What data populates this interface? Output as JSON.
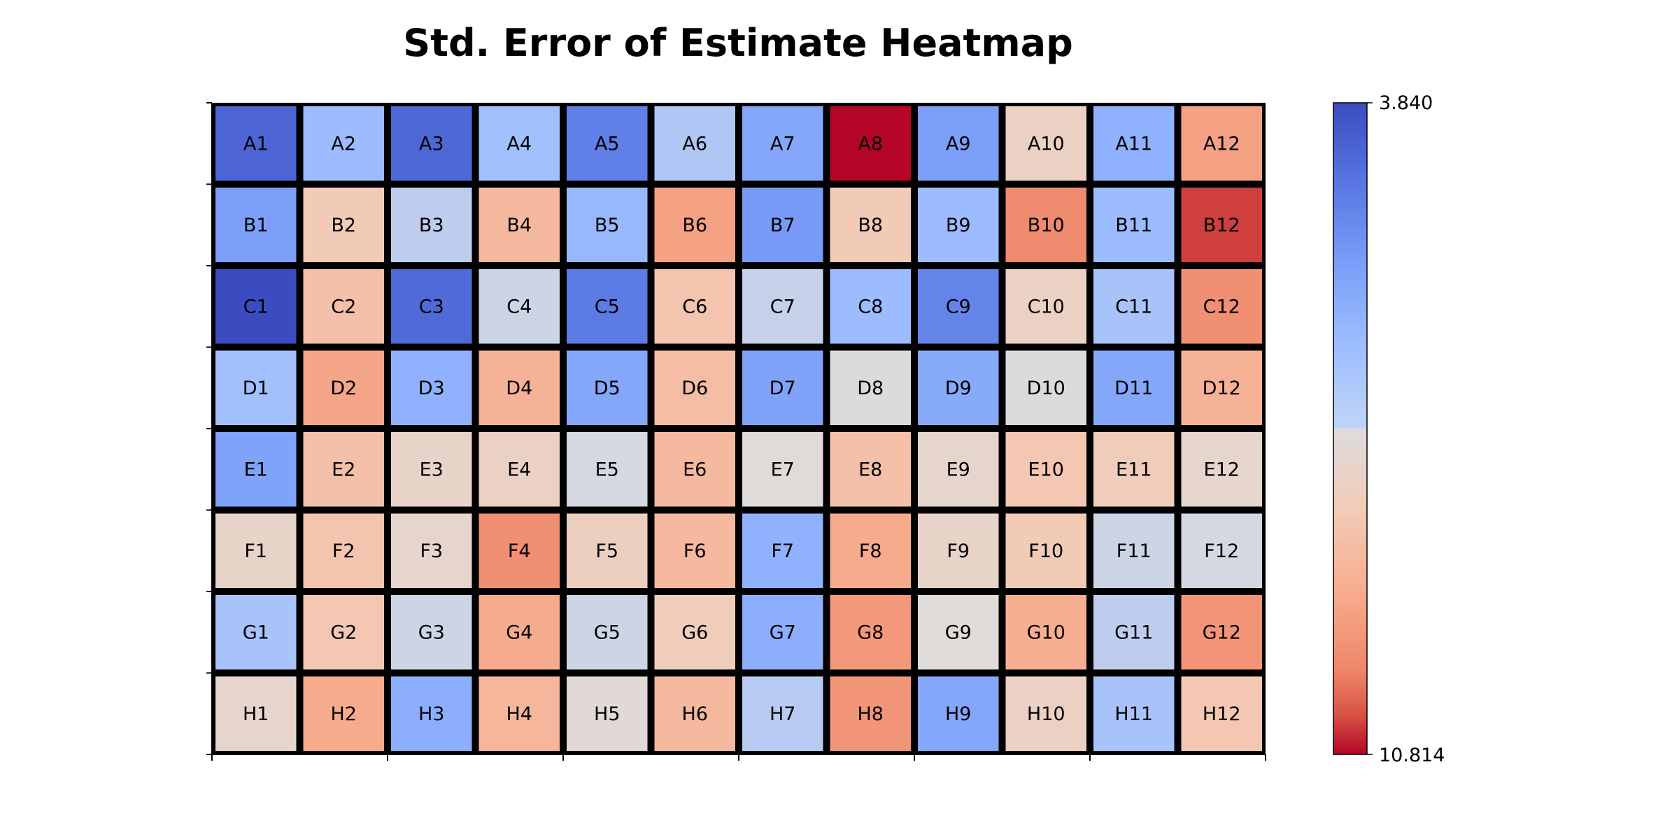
{
  "chart_data": {
    "type": "heatmap",
    "title": "Std. Error of Estimate Heatmap",
    "rows": [
      "A",
      "B",
      "C",
      "D",
      "E",
      "F",
      "G",
      "H"
    ],
    "columns": [
      "1",
      "2",
      "3",
      "4",
      "5",
      "6",
      "7",
      "8",
      "9",
      "10",
      "11",
      "12"
    ],
    "cell_labels": [
      [
        "A1",
        "A2",
        "A3",
        "A4",
        "A5",
        "A6",
        "A7",
        "A8",
        "A9",
        "A10",
        "A11",
        "A12"
      ],
      [
        "B1",
        "B2",
        "B3",
        "B4",
        "B5",
        "B6",
        "B7",
        "B8",
        "B9",
        "B10",
        "B11",
        "B12"
      ],
      [
        "C1",
        "C2",
        "C3",
        "C4",
        "C5",
        "C6",
        "C7",
        "C8",
        "C9",
        "C10",
        "C11",
        "C12"
      ],
      [
        "D1",
        "D2",
        "D3",
        "D4",
        "D5",
        "D6",
        "D7",
        "D8",
        "D9",
        "D10",
        "D11",
        "D12"
      ],
      [
        "E1",
        "E2",
        "E3",
        "E4",
        "E5",
        "E6",
        "E7",
        "E8",
        "E9",
        "E10",
        "E11",
        "E12"
      ],
      [
        "F1",
        "F2",
        "F3",
        "F4",
        "F5",
        "F6",
        "F7",
        "F8",
        "F9",
        "F10",
        "F11",
        "F12"
      ],
      [
        "G1",
        "G2",
        "G3",
        "G4",
        "G5",
        "G6",
        "G7",
        "G8",
        "G9",
        "G10",
        "G11",
        "G12"
      ],
      [
        "H1",
        "H2",
        "H3",
        "H4",
        "H5",
        "H6",
        "H7",
        "H8",
        "H9",
        "H10",
        "H11",
        "H12"
      ]
    ],
    "values": [
      [
        4.35,
        6.4,
        4.4,
        6.5,
        4.9,
        6.7,
        5.8,
        10.81,
        5.6,
        7.9,
        6.1,
        9.3
      ],
      [
        5.6,
        8.2,
        6.9,
        8.7,
        6.3,
        9.3,
        5.5,
        8.2,
        6.4,
        9.8,
        6.4,
        10.5
      ],
      [
        3.84,
        8.5,
        4.45,
        7.1,
        4.8,
        8.4,
        7.0,
        6.4,
        5.0,
        7.9,
        6.6,
        9.7
      ],
      [
        6.5,
        9.2,
        6.1,
        8.9,
        5.8,
        8.6,
        5.7,
        7.3,
        5.9,
        7.3,
        5.8,
        8.9
      ],
      [
        5.7,
        8.5,
        7.8,
        7.9,
        7.2,
        8.7,
        7.4,
        8.5,
        7.7,
        8.3,
        8.1,
        7.7
      ],
      [
        7.8,
        8.4,
        7.7,
        9.7,
        8.0,
        8.7,
        6.1,
        9.1,
        7.8,
        8.2,
        7.1,
        7.2
      ],
      [
        6.6,
        8.3,
        7.1,
        9.1,
        7.1,
        8.1,
        6.0,
        9.5,
        7.4,
        9.0,
        6.9,
        9.6
      ],
      [
        7.7,
        9.1,
        6.0,
        8.8,
        7.5,
        8.7,
        6.8,
        9.6,
        5.8,
        7.9,
        6.6,
        8.3
      ]
    ],
    "colorbar": {
      "min": 3.84,
      "max": 10.814,
      "min_label": "3.840",
      "max_label": "10.814",
      "orientation": "vertical",
      "min_at": "top",
      "colormap": "coolwarm_r"
    },
    "colors": {
      "low": "#3b4cc0",
      "high": "#b40426",
      "gridline": "#000000"
    }
  }
}
